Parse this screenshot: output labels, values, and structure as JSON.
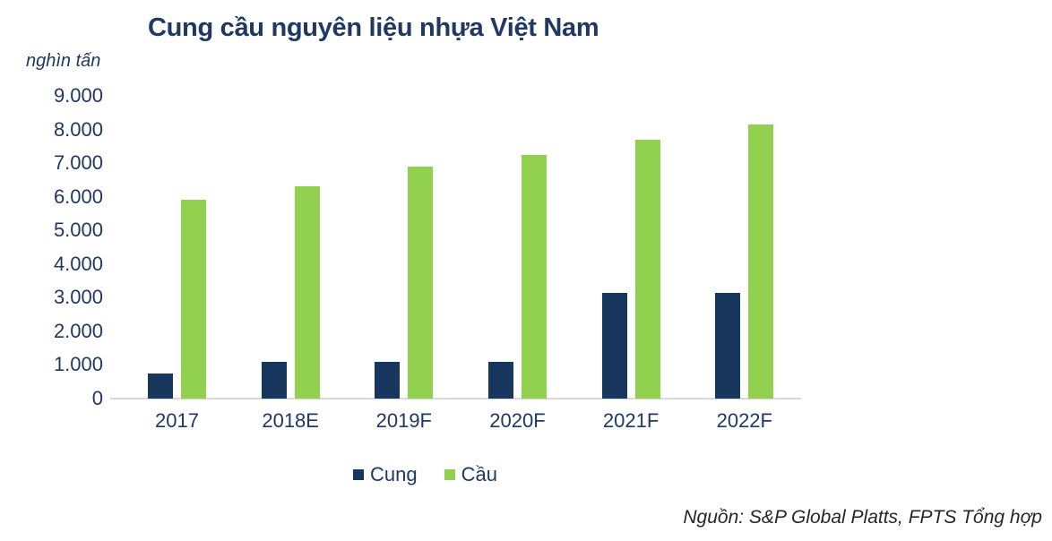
{
  "title": "Cung cầu nguyên liệu nhựa Việt Nam",
  "unit_label": "nghìn tấn",
  "source": "Nguồn: S&P Global Platts, FPTS Tổng hợp",
  "colors": {
    "title_text": "#1F3864",
    "axis_text": "#1F3864",
    "supply_bar": "#17375E",
    "demand_bar": "#92D050",
    "axis_line": "#D9D9D9",
    "source_text": "#262626"
  },
  "legend": {
    "items": [
      {
        "label": "Cung",
        "color": "#17375E"
      },
      {
        "label": "Cầu",
        "color": "#92D050"
      }
    ]
  },
  "chart_data": {
    "type": "bar",
    "title": "Cung cầu nguyên liệu nhựa Việt Nam",
    "ylabel": "nghìn tấn",
    "categories": [
      "2017",
      "2018E",
      "2019F",
      "2020F",
      "2021F",
      "2022F"
    ],
    "series": [
      {
        "name": "Cung",
        "color": "#17375E",
        "values": [
          750,
          1100,
          1100,
          1100,
          3150,
          3150
        ]
      },
      {
        "name": "Cầu",
        "color": "#92D050",
        "values": [
          5900,
          6300,
          6900,
          7250,
          7700,
          8150
        ]
      }
    ],
    "ylim": [
      0,
      9000
    ],
    "ytick_step": 1000,
    "ytick_labels": [
      "0",
      "1.000",
      "2.000",
      "3.000",
      "4.000",
      "5.000",
      "6.000",
      "7.000",
      "8.000",
      "9.000"
    ],
    "grid": false,
    "legend_position": "bottom"
  }
}
